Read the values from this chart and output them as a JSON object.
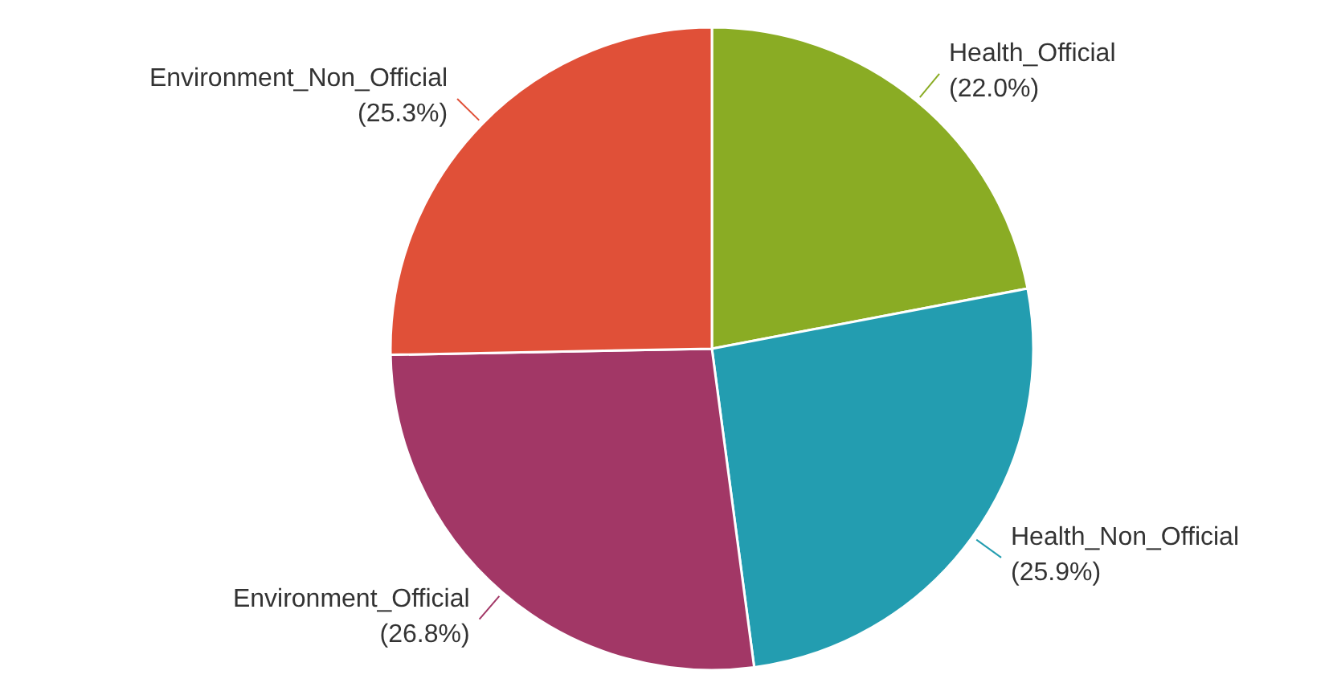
{
  "chart_data": {
    "type": "pie",
    "categories": [
      "Health_Official",
      "Health_Non_Official",
      "Environment_Official",
      "Environment_Non_Official"
    ],
    "values": [
      22.0,
      25.9,
      26.8,
      25.3
    ],
    "value_labels": [
      "(22.0%)",
      "(25.9%)",
      "(26.8%)",
      "(25.3%)"
    ],
    "colors": [
      "#8aac24",
      "#239db0",
      "#a23766",
      "#e05038"
    ],
    "legend": false
  }
}
